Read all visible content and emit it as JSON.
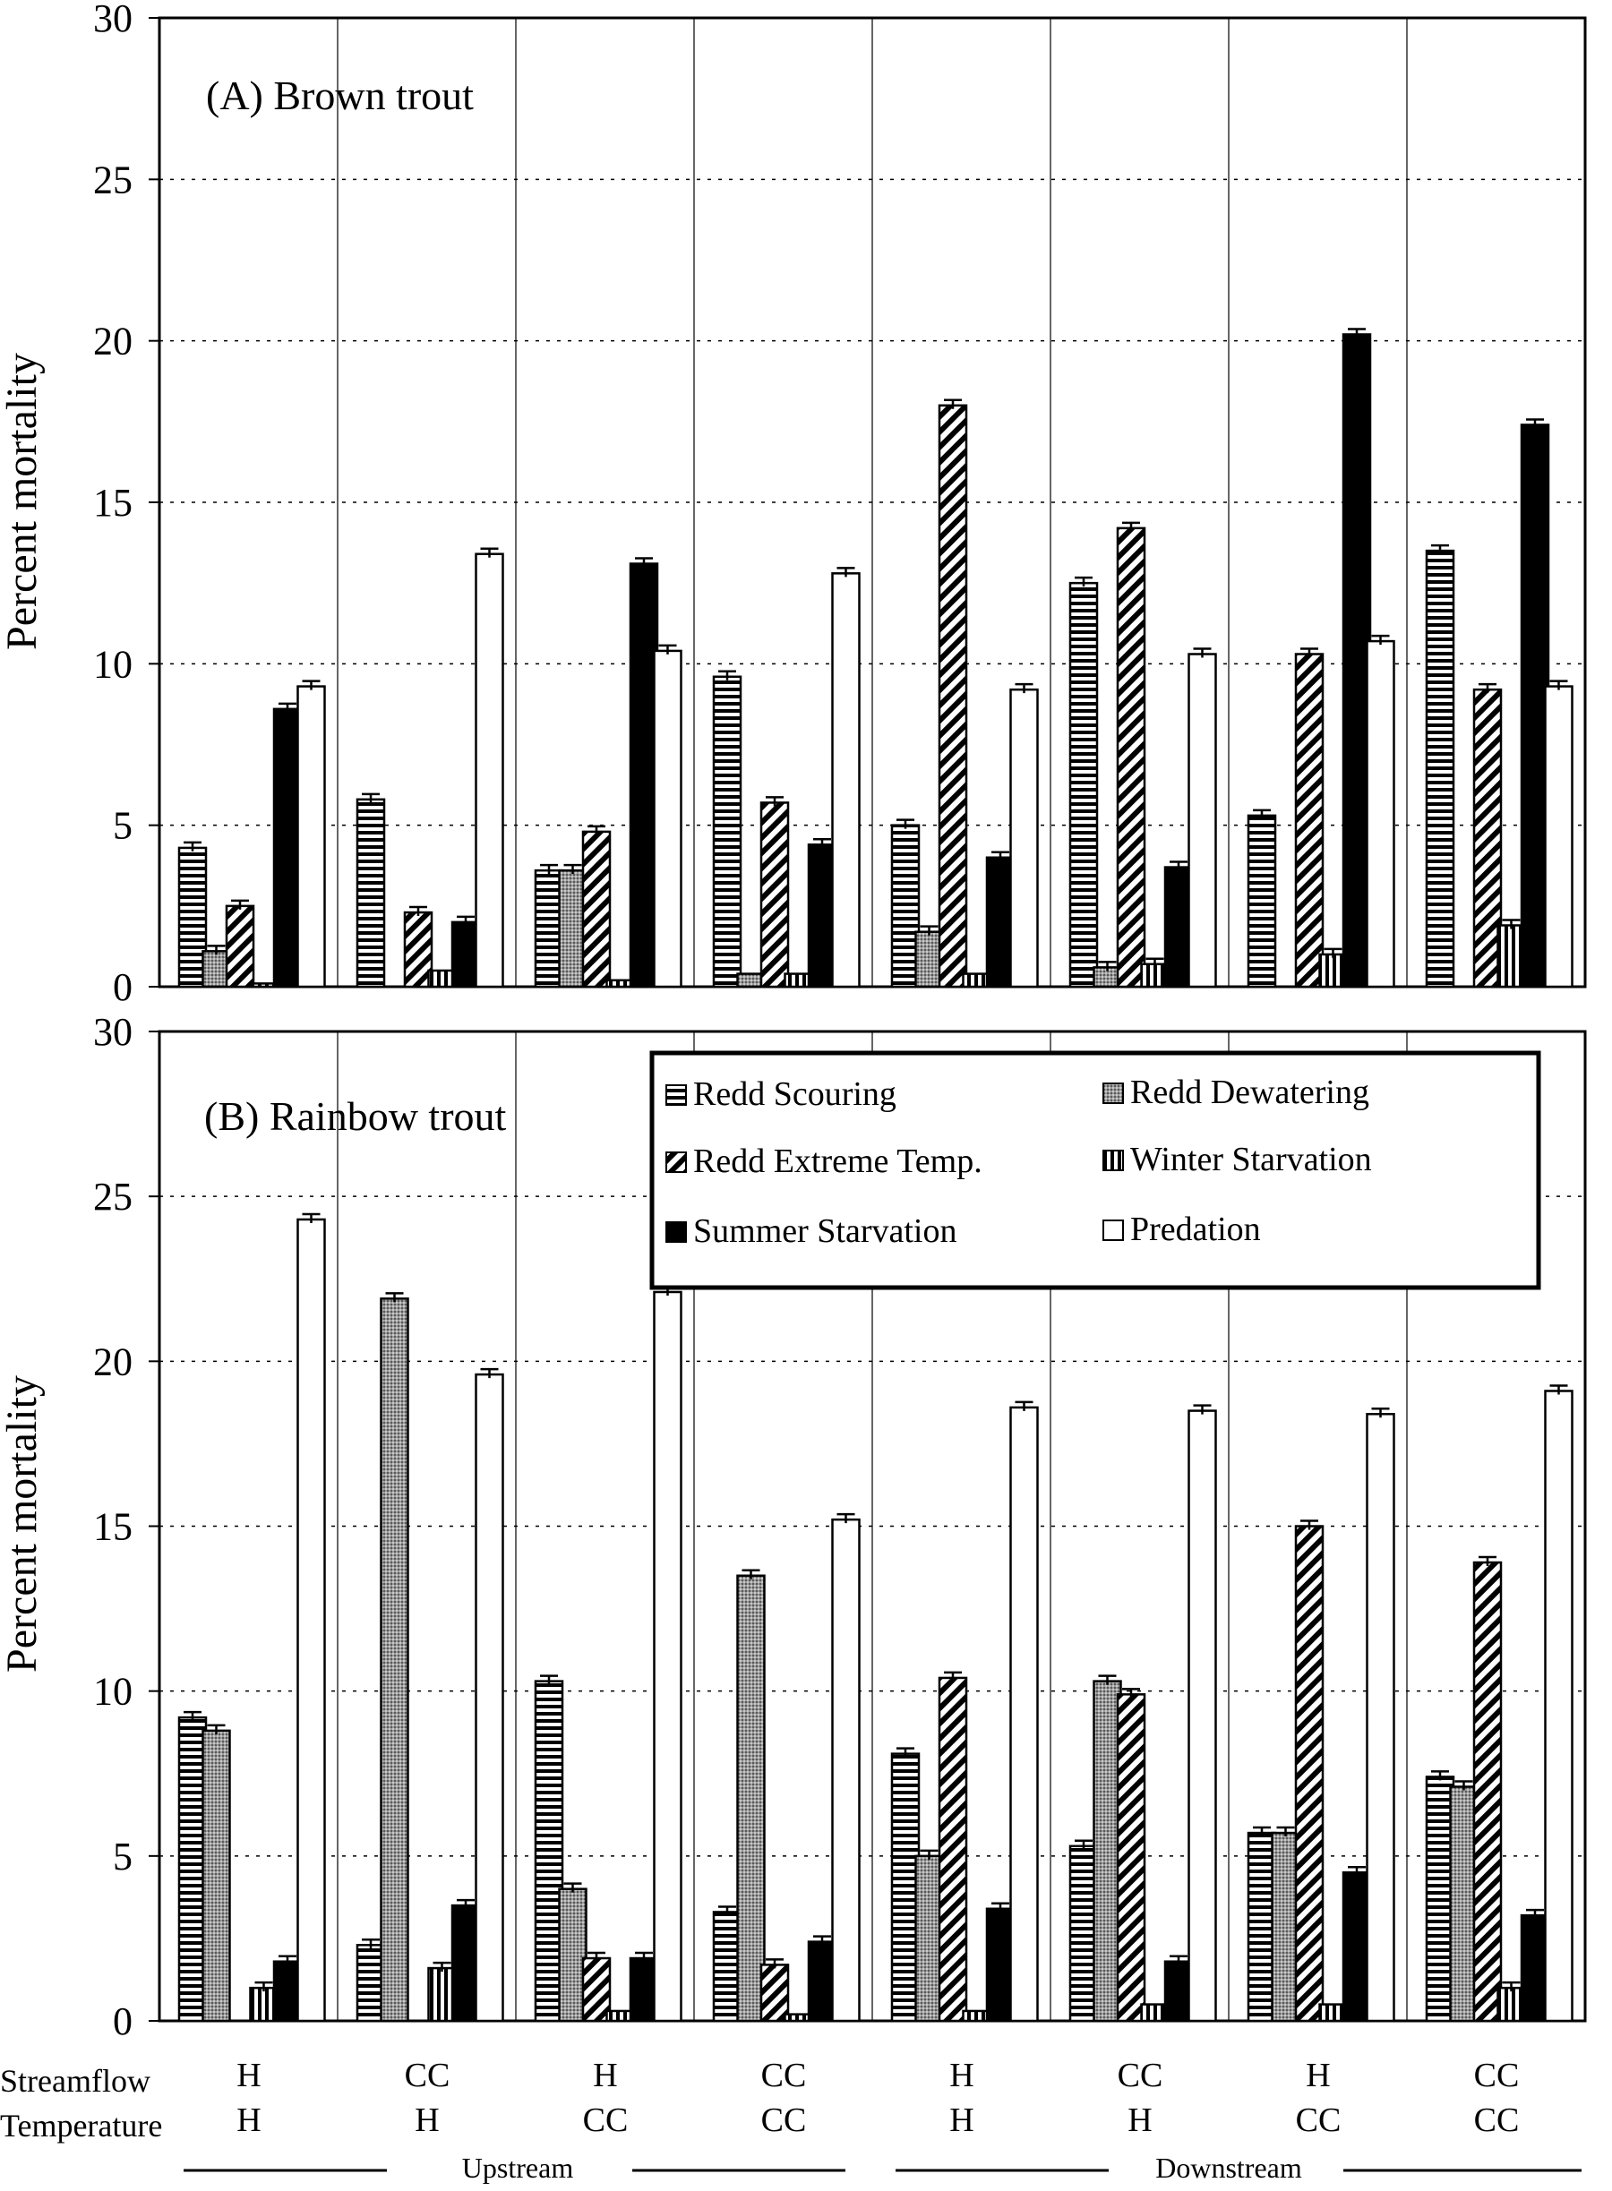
{
  "chart_data": [
    {
      "type": "bar",
      "panel_label": "(A) Brown trout",
      "ylabel": "Percent mortality",
      "ylim": [
        0,
        30
      ],
      "yticks": [
        "0",
        "5",
        "10",
        "15",
        "20",
        "25",
        "30"
      ],
      "grid": true,
      "scenarios": [
        {
          "streamflow": "H",
          "temperature": "H",
          "values": [
            4.3,
            1.1,
            2.5,
            0.1,
            8.6,
            9.3
          ]
        },
        {
          "streamflow": "CC",
          "temperature": "H",
          "values": [
            5.8,
            0.0,
            2.3,
            0.5,
            2.0,
            13.4
          ]
        },
        {
          "streamflow": "H",
          "temperature": "CC",
          "values": [
            3.6,
            3.6,
            4.8,
            0.2,
            13.1,
            10.4
          ]
        },
        {
          "streamflow": "CC",
          "temperature": "CC",
          "values": [
            9.6,
            0.4,
            5.7,
            0.4,
            4.4,
            12.8
          ]
        },
        {
          "streamflow": "H",
          "temperature": "H",
          "values": [
            5.0,
            1.7,
            18.0,
            0.4,
            4.0,
            9.2
          ]
        },
        {
          "streamflow": "CC",
          "temperature": "H",
          "values": [
            12.5,
            0.6,
            14.2,
            0.7,
            3.7,
            10.3
          ]
        },
        {
          "streamflow": "H",
          "temperature": "CC",
          "values": [
            5.3,
            0.0,
            10.3,
            1.0,
            20.2,
            10.7
          ]
        },
        {
          "streamflow": "CC",
          "temperature": "CC",
          "values": [
            13.5,
            0.0,
            9.2,
            1.9,
            17.4,
            9.3
          ]
        }
      ]
    },
    {
      "type": "bar",
      "panel_label": "(B) Rainbow trout",
      "ylabel": "Percent mortality",
      "ylim": [
        0,
        30
      ],
      "yticks": [
        "0",
        "5",
        "10",
        "15",
        "20",
        "25",
        "30"
      ],
      "grid": true,
      "legend": [
        {
          "label": "Redd Scouring",
          "pattern": "horizontal-stripes"
        },
        {
          "label": "Redd Dewatering",
          "pattern": "gray-stipple"
        },
        {
          "label": "Redd Extreme Temp.",
          "pattern": "diagonal-stripes"
        },
        {
          "label": "Winter Starvation",
          "pattern": "vertical-stripes"
        },
        {
          "label": "Summer Starvation",
          "pattern": "solid-black"
        },
        {
          "label": "Predation",
          "pattern": "white"
        }
      ],
      "legend_position": "top-right",
      "scenarios": [
        {
          "streamflow": "H",
          "temperature": "H",
          "values": [
            9.2,
            8.8,
            0.0,
            1.0,
            1.8,
            24.3
          ]
        },
        {
          "streamflow": "CC",
          "temperature": "H",
          "values": [
            2.3,
            21.9,
            0.0,
            1.6,
            3.5,
            19.6
          ]
        },
        {
          "streamflow": "H",
          "temperature": "CC",
          "values": [
            10.3,
            4.0,
            1.9,
            0.3,
            1.9,
            22.1
          ]
        },
        {
          "streamflow": "CC",
          "temperature": "CC",
          "values": [
            3.3,
            13.5,
            1.7,
            0.2,
            2.4,
            15.2
          ]
        },
        {
          "streamflow": "H",
          "temperature": "H",
          "values": [
            8.1,
            5.0,
            10.4,
            0.3,
            3.4,
            18.6
          ]
        },
        {
          "streamflow": "CC",
          "temperature": "H",
          "values": [
            5.3,
            10.3,
            9.9,
            0.5,
            1.8,
            18.5
          ]
        },
        {
          "streamflow": "H",
          "temperature": "CC",
          "values": [
            5.7,
            5.7,
            15.0,
            0.5,
            4.5,
            18.4
          ]
        },
        {
          "streamflow": "CC",
          "temperature": "CC",
          "values": [
            7.4,
            7.1,
            13.9,
            1.0,
            3.2,
            19.1
          ]
        }
      ]
    }
  ],
  "xaxis": {
    "streamflow_label": "Streamflow",
    "temperature_label": "Temperature",
    "groups": [
      "Upstream",
      "Downstream"
    ]
  },
  "colors": {
    "stipple": "#9a9a9a",
    "black": "#000000",
    "white": "#ffffff"
  }
}
